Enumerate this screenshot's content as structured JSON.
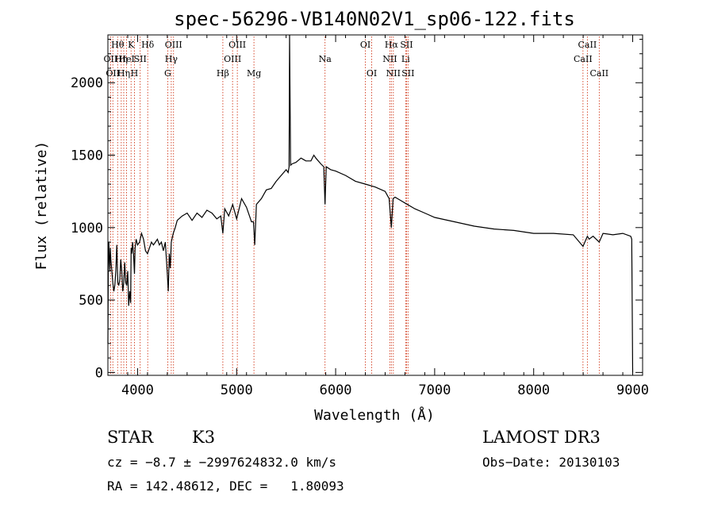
{
  "chart_data": {
    "type": "line",
    "title": "spec-56296-VB140N02V1_sp06-122.fits",
    "xlabel": "Wavelength (Å)",
    "ylabel": "Flux (relative)",
    "xlim": [
      3700,
      9100
    ],
    "ylim": [
      -20,
      2330
    ],
    "xticks": [
      4000,
      5000,
      6000,
      7000,
      8000,
      9000
    ],
    "yticks": [
      0,
      500,
      1000,
      1500,
      2000
    ],
    "xtick_labels": [
      "4000",
      "5000",
      "6000",
      "7000",
      "8000",
      "9000"
    ],
    "ytick_labels": [
      "0",
      "500",
      "1000",
      "1500",
      "2000"
    ],
    "series": [
      {
        "name": "flux",
        "x": [
          3700,
          3705,
          3710,
          3715,
          3720,
          3725,
          3730,
          3740,
          3750,
          3760,
          3770,
          3780,
          3790,
          3800,
          3810,
          3820,
          3830,
          3840,
          3850,
          3860,
          3870,
          3880,
          3890,
          3900,
          3910,
          3920,
          3930,
          3935,
          3940,
          3950,
          3960,
          3968,
          3975,
          3985,
          4000,
          4020,
          4040,
          4060,
          4080,
          4100,
          4120,
          4140,
          4160,
          4180,
          4200,
          4220,
          4240,
          4260,
          4280,
          4300,
          4310,
          4320,
          4330,
          4340,
          4360,
          4380,
          4400,
          4450,
          4500,
          4550,
          4600,
          4650,
          4700,
          4750,
          4800,
          4840,
          4861,
          4880,
          4920,
          4960,
          5000,
          5050,
          5100,
          5150,
          5170,
          5183,
          5200,
          5250,
          5300,
          5350,
          5400,
          5450,
          5500,
          5520,
          5530,
          5535,
          5545,
          5560,
          5600,
          5650,
          5700,
          5750,
          5780,
          5800,
          5850,
          5880,
          5893,
          5905,
          5950,
          6000,
          6100,
          6200,
          6300,
          6400,
          6500,
          6540,
          6563,
          6580,
          6600,
          6650,
          6700,
          6800,
          6900,
          7000,
          7200,
          7400,
          7600,
          7800,
          8000,
          8200,
          8400,
          8498,
          8542,
          8560,
          8600,
          8662,
          8700,
          8800,
          8900,
          8980,
          8990,
          9000
        ],
        "y": [
          200,
          820,
          900,
          760,
          700,
          860,
          780,
          700,
          620,
          560,
          600,
          700,
          880,
          620,
          600,
          640,
          780,
          700,
          560,
          620,
          760,
          620,
          600,
          700,
          460,
          560,
          480,
          860,
          820,
          900,
          800,
          680,
          860,
          920,
          880,
          900,
          960,
          920,
          840,
          820,
          860,
          900,
          880,
          900,
          920,
          880,
          900,
          840,
          900,
          680,
          560,
          820,
          720,
          900,
          960,
          1000,
          1050,
          1080,
          1100,
          1050,
          1100,
          1070,
          1120,
          1100,
          1060,
          1080,
          960,
          1130,
          1080,
          1160,
          1060,
          1200,
          1140,
          1040,
          1040,
          880,
          1160,
          1200,
          1260,
          1270,
          1320,
          1360,
          1400,
          1380,
          1420,
          2330,
          1430,
          1440,
          1450,
          1480,
          1460,
          1460,
          1500,
          1480,
          1440,
          1420,
          1160,
          1420,
          1400,
          1390,
          1360,
          1320,
          1300,
          1280,
          1250,
          1200,
          1000,
          1200,
          1210,
          1190,
          1170,
          1130,
          1100,
          1070,
          1040,
          1010,
          990,
          980,
          960,
          960,
          950,
          870,
          940,
          920,
          940,
          900,
          960,
          950,
          960,
          940,
          920,
          0
        ]
      }
    ],
    "lines": [
      {
        "wave": 3727,
        "label": "OII",
        "row": 2
      },
      {
        "wave": 3750,
        "label": "OII",
        "row": 3
      },
      {
        "wave": 3798,
        "label": "Hθ",
        "row": 1
      },
      {
        "wave": 3835,
        "label": "Hη",
        "row": 2
      },
      {
        "wave": 3860,
        "label": "Hη",
        "row": 3
      },
      {
        "wave": 3889,
        "label": "HeI",
        "row": 2
      },
      {
        "wave": 3934,
        "label": "K",
        "row": 1
      },
      {
        "wave": 3968,
        "label": "H",
        "row": 3
      },
      {
        "wave": 4026,
        "label": "SII",
        "row": 2
      },
      {
        "wave": 4102,
        "label": "Hδ",
        "row": 1
      },
      {
        "wave": 4304,
        "label": "G",
        "row": 3
      },
      {
        "wave": 4340,
        "label": "Hγ",
        "row": 2
      },
      {
        "wave": 4363,
        "label": "OIII",
        "row": 1
      },
      {
        "wave": 4861,
        "label": "Hβ",
        "row": 3
      },
      {
        "wave": 4959,
        "label": "OIII",
        "row": 2
      },
      {
        "wave": 5007,
        "label": "OIII",
        "row": 1
      },
      {
        "wave": 5175,
        "label": "Mg",
        "row": 3
      },
      {
        "wave": 5893,
        "label": "Na",
        "row": 2
      },
      {
        "wave": 6300,
        "label": "OI",
        "row": 1
      },
      {
        "wave": 6364,
        "label": "OI",
        "row": 3
      },
      {
        "wave": 6548,
        "label": "NII",
        "row": 2
      },
      {
        "wave": 6563,
        "label": "Hα",
        "row": 1
      },
      {
        "wave": 6583,
        "label": "NII",
        "row": 3
      },
      {
        "wave": 6707,
        "label": "Li",
        "row": 2
      },
      {
        "wave": 6716,
        "label": "SII",
        "row": 1
      },
      {
        "wave": 6731,
        "label": "SII",
        "row": 3
      },
      {
        "wave": 8498,
        "label": "CaII",
        "row": 2
      },
      {
        "wave": 8542,
        "label": "CaII",
        "row": 1
      },
      {
        "wave": 8662,
        "label": "CaII",
        "row": 3
      }
    ]
  },
  "footer": {
    "object_type": "STAR",
    "subclass": "K3",
    "survey": "LAMOST DR3",
    "cz": "cz = −8.7 ± −2997624832.0 km/s",
    "obs_date": "Obs−Date: 20130103",
    "coords": "RA = 142.48612, DEC =   1.80093"
  }
}
